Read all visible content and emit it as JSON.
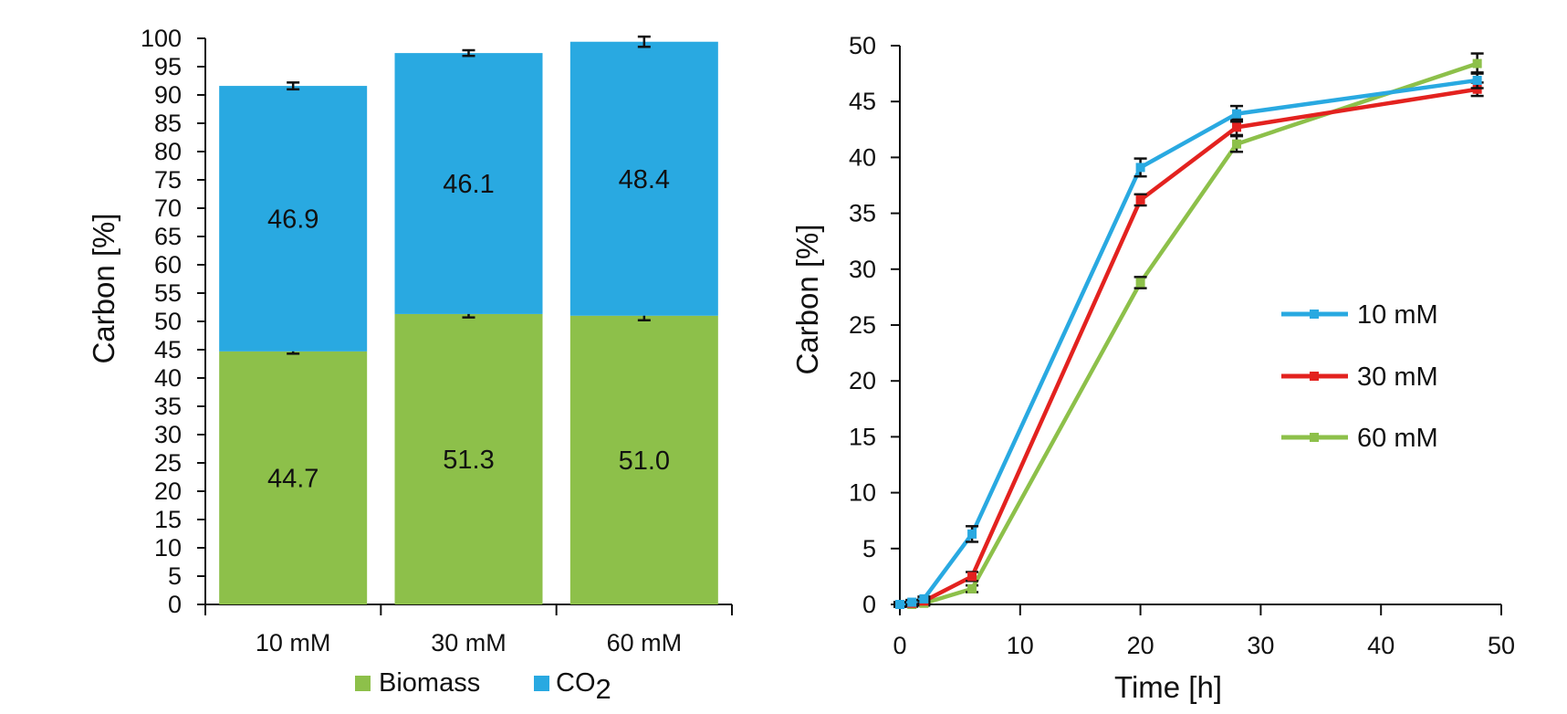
{
  "chart_data": [
    {
      "type": "bar",
      "stacked": true,
      "ylabel": "Carbon [%]",
      "xlabel": "",
      "ylim": [
        0,
        100
      ],
      "yticks": [
        0,
        5,
        10,
        15,
        20,
        25,
        30,
        35,
        40,
        45,
        50,
        55,
        60,
        65,
        70,
        75,
        80,
        85,
        90,
        95,
        100
      ],
      "categories": [
        "10 mM",
        "30 mM",
        "60 mM"
      ],
      "series": [
        {
          "name": "Biomass",
          "color": "#8DC04A",
          "values": [
            44.7,
            51.3,
            51.0
          ],
          "labels": [
            "44.7",
            "51.3",
            "51.0"
          ],
          "error": [
            0.4,
            0.6,
            0.8
          ]
        },
        {
          "name": "CO",
          "name_sub": "2",
          "color": "#29A9E1",
          "values": [
            46.9,
            46.1,
            48.4
          ],
          "labels": [
            "46.9",
            "46.1",
            "48.4"
          ],
          "error": [
            0.6,
            0.5,
            0.9
          ]
        }
      ],
      "legend": "bottom",
      "grid": false
    },
    {
      "type": "line",
      "ylabel": "Carbon [%]",
      "xlabel": "Time [h]",
      "xlim": [
        0,
        50
      ],
      "ylim": [
        0,
        50
      ],
      "xticks": [
        0,
        10,
        20,
        30,
        40,
        50
      ],
      "yticks": [
        0,
        5,
        10,
        15,
        20,
        25,
        30,
        35,
        40,
        45,
        50
      ],
      "legend": "right",
      "grid": false,
      "series": [
        {
          "name": "10 mM",
          "color": "#29A9E1",
          "x": [
            0,
            1,
            2,
            6,
            20,
            28,
            48
          ],
          "y": [
            0.0,
            0.2,
            0.5,
            6.3,
            39.1,
            43.9,
            46.9
          ],
          "error": [
            0.2,
            0.2,
            0.2,
            0.7,
            0.8,
            0.7,
            0.7
          ]
        },
        {
          "name": "30 mM",
          "color": "#E3221F",
          "x": [
            0,
            1,
            2,
            6,
            20,
            28,
            48
          ],
          "y": [
            0.0,
            0.1,
            0.3,
            2.5,
            36.2,
            42.7,
            46.1
          ],
          "error": [
            0.2,
            0.2,
            0.2,
            0.4,
            0.5,
            0.7,
            0.6
          ]
        },
        {
          "name": "60 mM",
          "color": "#8DC04A",
          "x": [
            0,
            1,
            2,
            6,
            20,
            28,
            48
          ],
          "y": [
            0.0,
            0.0,
            0.1,
            1.4,
            28.8,
            41.2,
            48.4
          ],
          "error": [
            0.2,
            0.2,
            0.2,
            0.3,
            0.5,
            0.7,
            0.9
          ]
        }
      ]
    }
  ]
}
